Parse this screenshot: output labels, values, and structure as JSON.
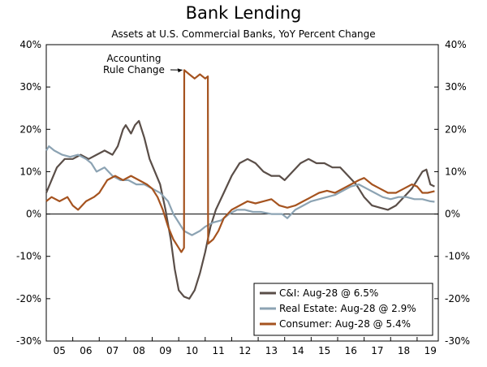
{
  "chart_data": {
    "type": "line",
    "title": "Bank Lending",
    "subtitle": "Assets at U.S. Commercial Banks, YoY Percent Change",
    "ylim": [
      -30,
      40
    ],
    "yticks": [
      "40%",
      "30%",
      "20%",
      "10%",
      "0%",
      "-10%",
      "-20%",
      "-30%"
    ],
    "xlim": [
      2005,
      2019.8
    ],
    "xticks": [
      "05",
      "06",
      "07",
      "08",
      "09",
      "10",
      "11",
      "12",
      "13",
      "14",
      "15",
      "16",
      "17",
      "18",
      "19"
    ],
    "annotation": {
      "lines": [
        "Accounting",
        "Rule Change"
      ],
      "x": 2010.2,
      "y": 34
    },
    "legend_position": "bottom-right",
    "series": [
      {
        "name": "C&I: Aug-28 @ 6.5%",
        "color": "#5a4e48",
        "points": [
          [
            2005.0,
            5
          ],
          [
            2005.2,
            8
          ],
          [
            2005.4,
            11
          ],
          [
            2005.7,
            13
          ],
          [
            2006.0,
            13
          ],
          [
            2006.3,
            14
          ],
          [
            2006.6,
            13
          ],
          [
            2006.9,
            14
          ],
          [
            2007.2,
            15
          ],
          [
            2007.5,
            14
          ],
          [
            2007.7,
            16
          ],
          [
            2007.9,
            20
          ],
          [
            2008.0,
            21
          ],
          [
            2008.2,
            19
          ],
          [
            2008.35,
            21
          ],
          [
            2008.5,
            22
          ],
          [
            2008.7,
            18
          ],
          [
            2008.9,
            13
          ],
          [
            2009.1,
            10
          ],
          [
            2009.3,
            7
          ],
          [
            2009.5,
            1
          ],
          [
            2009.7,
            -6
          ],
          [
            2009.85,
            -13
          ],
          [
            2010.0,
            -18
          ],
          [
            2010.2,
            -19.5
          ],
          [
            2010.4,
            -20
          ],
          [
            2010.6,
            -18
          ],
          [
            2010.8,
            -14
          ],
          [
            2011.0,
            -9
          ],
          [
            2011.2,
            -3
          ],
          [
            2011.4,
            1
          ],
          [
            2011.7,
            5
          ],
          [
            2012.0,
            9
          ],
          [
            2012.3,
            12
          ],
          [
            2012.6,
            13
          ],
          [
            2012.9,
            12
          ],
          [
            2013.2,
            10
          ],
          [
            2013.5,
            9
          ],
          [
            2013.8,
            9
          ],
          [
            2014.0,
            8
          ],
          [
            2014.3,
            10
          ],
          [
            2014.6,
            12
          ],
          [
            2014.9,
            13
          ],
          [
            2015.2,
            12
          ],
          [
            2015.5,
            12
          ],
          [
            2015.8,
            11
          ],
          [
            2016.1,
            11
          ],
          [
            2016.4,
            9
          ],
          [
            2016.7,
            7
          ],
          [
            2017.0,
            4
          ],
          [
            2017.3,
            2
          ],
          [
            2017.6,
            1.5
          ],
          [
            2017.9,
            1
          ],
          [
            2018.2,
            2
          ],
          [
            2018.5,
            4
          ],
          [
            2018.8,
            6
          ],
          [
            2019.0,
            8
          ],
          [
            2019.2,
            10
          ],
          [
            2019.35,
            10.5
          ],
          [
            2019.5,
            7
          ],
          [
            2019.66,
            6.5
          ]
        ]
      },
      {
        "name": "Real Estate: Aug-28 @ 2.9%",
        "color": "#8ca3b3",
        "points": [
          [
            2005.0,
            15
          ],
          [
            2005.1,
            16
          ],
          [
            2005.3,
            15
          ],
          [
            2005.6,
            14
          ],
          [
            2005.9,
            13.5
          ],
          [
            2006.2,
            14
          ],
          [
            2006.5,
            13
          ],
          [
            2006.7,
            12
          ],
          [
            2006.9,
            10
          ],
          [
            2007.2,
            11
          ],
          [
            2007.5,
            9
          ],
          [
            2007.8,
            8
          ],
          [
            2008.1,
            8
          ],
          [
            2008.4,
            7
          ],
          [
            2008.7,
            7
          ],
          [
            2009.0,
            6
          ],
          [
            2009.3,
            5
          ],
          [
            2009.6,
            3
          ],
          [
            2009.8,
            0
          ],
          [
            2010.0,
            -2
          ],
          [
            2010.2,
            -4
          ],
          [
            2010.5,
            -5
          ],
          [
            2010.8,
            -4
          ],
          [
            2011.0,
            -3
          ],
          [
            2011.3,
            -2
          ],
          [
            2011.6,
            -1.5
          ],
          [
            2011.9,
            0
          ],
          [
            2012.2,
            1
          ],
          [
            2012.5,
            1
          ],
          [
            2012.8,
            0.5
          ],
          [
            2013.1,
            0.5
          ],
          [
            2013.5,
            0
          ],
          [
            2013.9,
            0
          ],
          [
            2014.1,
            -1
          ],
          [
            2014.4,
            1
          ],
          [
            2014.7,
            2
          ],
          [
            2015.0,
            3
          ],
          [
            2015.3,
            3.5
          ],
          [
            2015.6,
            4
          ],
          [
            2015.9,
            4.5
          ],
          [
            2016.2,
            5.5
          ],
          [
            2016.5,
            6.5
          ],
          [
            2016.8,
            7
          ],
          [
            2017.1,
            6
          ],
          [
            2017.4,
            5
          ],
          [
            2017.7,
            4
          ],
          [
            2018.0,
            3.5
          ],
          [
            2018.3,
            4
          ],
          [
            2018.6,
            4
          ],
          [
            2018.9,
            3.5
          ],
          [
            2019.2,
            3.5
          ],
          [
            2019.5,
            3
          ],
          [
            2019.66,
            2.9
          ]
        ]
      },
      {
        "name": "Consumer: Aug-28 @ 5.4%",
        "color": "#a5531f",
        "points": [
          [
            2005.0,
            3
          ],
          [
            2005.2,
            4
          ],
          [
            2005.5,
            3
          ],
          [
            2005.8,
            4
          ],
          [
            2006.0,
            2
          ],
          [
            2006.2,
            1
          ],
          [
            2006.5,
            3
          ],
          [
            2006.8,
            4
          ],
          [
            2007.0,
            5
          ],
          [
            2007.3,
            8
          ],
          [
            2007.6,
            9
          ],
          [
            2007.9,
            8
          ],
          [
            2008.2,
            9
          ],
          [
            2008.5,
            8
          ],
          [
            2008.8,
            7
          ],
          [
            2009.0,
            6
          ],
          [
            2009.2,
            4
          ],
          [
            2009.4,
            1
          ],
          [
            2009.6,
            -3
          ],
          [
            2009.8,
            -6
          ],
          [
            2010.0,
            -8
          ],
          [
            2010.1,
            -9
          ],
          [
            2010.2,
            -8
          ],
          [
            2010.21,
            34
          ],
          [
            2010.4,
            33
          ],
          [
            2010.6,
            32
          ],
          [
            2010.8,
            33
          ],
          [
            2011.0,
            32
          ],
          [
            2011.1,
            32.5
          ],
          [
            2011.11,
            -7
          ],
          [
            2011.3,
            -6
          ],
          [
            2011.5,
            -4
          ],
          [
            2011.7,
            -1
          ],
          [
            2012.0,
            1
          ],
          [
            2012.3,
            2
          ],
          [
            2012.6,
            3
          ],
          [
            2012.9,
            2.5
          ],
          [
            2013.2,
            3
          ],
          [
            2013.5,
            3.5
          ],
          [
            2013.8,
            2
          ],
          [
            2014.1,
            1.5
          ],
          [
            2014.4,
            2
          ],
          [
            2014.7,
            3
          ],
          [
            2015.0,
            4
          ],
          [
            2015.3,
            5
          ],
          [
            2015.6,
            5.5
          ],
          [
            2015.9,
            5
          ],
          [
            2016.2,
            6
          ],
          [
            2016.5,
            7
          ],
          [
            2016.8,
            8
          ],
          [
            2017.0,
            8.5
          ],
          [
            2017.3,
            7
          ],
          [
            2017.6,
            6
          ],
          [
            2017.9,
            5
          ],
          [
            2018.2,
            5
          ],
          [
            2018.5,
            6
          ],
          [
            2018.8,
            7
          ],
          [
            2019.0,
            6.5
          ],
          [
            2019.2,
            5
          ],
          [
            2019.4,
            5
          ],
          [
            2019.66,
            5.4
          ]
        ]
      }
    ]
  }
}
